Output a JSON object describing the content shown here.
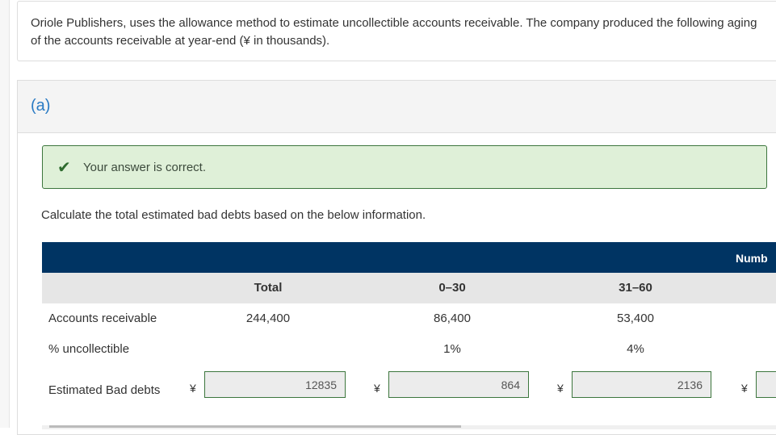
{
  "question": {
    "text": "Oriole Publishers, uses the allowance method to estimate uncollectible accounts receivable. The company produced the following aging of the accounts receivable at year-end (¥ in thousands)."
  },
  "part": {
    "label": "(a)",
    "feedback": "Your answer is correct.",
    "feedback_icon": "check-icon",
    "instruction": "Calculate the total estimated bad debts based on the below information."
  },
  "table": {
    "top_header": "Numb",
    "columns": [
      "Total",
      "0–30",
      "31–60"
    ],
    "rows": [
      {
        "label": "Accounts receivable",
        "values": [
          "244,400",
          "86,400",
          "53,400"
        ]
      },
      {
        "label": "% uncollectible",
        "values": [
          "",
          "1%",
          "4%"
        ]
      }
    ],
    "estimated": {
      "label": "Estimated Bad debts",
      "currency": "¥",
      "values": [
        "12835",
        "864",
        "2136",
        ""
      ]
    }
  },
  "colors": {
    "navy": "#003463",
    "success_bg": "#dff0d8",
    "link_blue": "#2a7bc4"
  }
}
